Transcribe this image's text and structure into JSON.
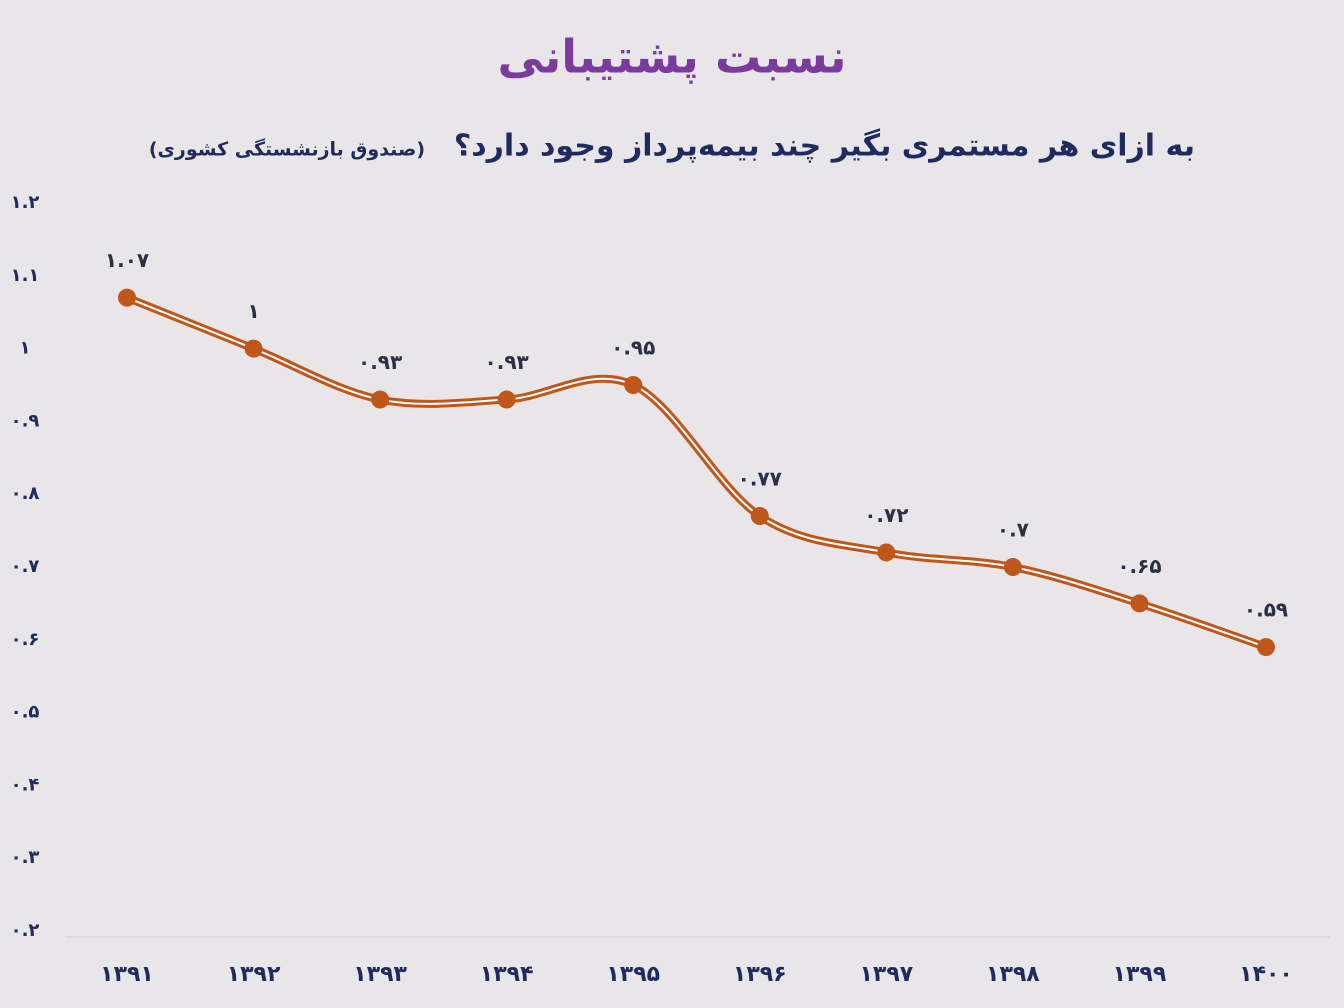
{
  "chart_data": {
    "type": "line",
    "title": "نسبت پشتیبانی",
    "subtitle": "به ازای هر مستمری بگیر چند بیمه‌پرداز وجود دارد؟",
    "source_note": "(صندوق بازنشستگی کشوری)",
    "categories": [
      "۱۳۹۱",
      "۱۳۹۲",
      "۱۳۹۳",
      "۱۳۹۴",
      "۱۳۹۵",
      "۱۳۹۶",
      "۱۳۹۷",
      "۱۳۹۸",
      "۱۳۹۹",
      "۱۴۰۰"
    ],
    "values": [
      1.07,
      1,
      0.93,
      0.93,
      0.95,
      0.77,
      0.72,
      0.7,
      0.65,
      0.59
    ],
    "value_labels": [
      "۱.۰۷",
      "۱",
      "۰.۹۳",
      "۰.۹۳",
      "۰.۹۵",
      "۰.۷۷",
      "۰.۷۲",
      "۰.۷",
      "۰.۶۵",
      "۰.۵۹"
    ],
    "color": "#c0571a",
    "ylim": [
      0.2,
      1.2
    ],
    "yticks": [
      {
        "value": 1.2,
        "label": "۱.۲"
      },
      {
        "value": 1.1,
        "label": "۱.۱"
      },
      {
        "value": 1,
        "label": "۱"
      },
      {
        "value": 0.9,
        "label": "۰.۹"
      },
      {
        "value": 0.8,
        "label": "۰.۸"
      },
      {
        "value": 0.7,
        "label": "۰.۷"
      },
      {
        "value": 0.6,
        "label": "۰.۶"
      },
      {
        "value": 0.5,
        "label": "۰.۵"
      },
      {
        "value": 0.4,
        "label": "۰.۴"
      },
      {
        "value": 0.3,
        "label": "۰.۳"
      },
      {
        "value": 0.2,
        "label": "۰.۲"
      }
    ],
    "smooth": true
  }
}
